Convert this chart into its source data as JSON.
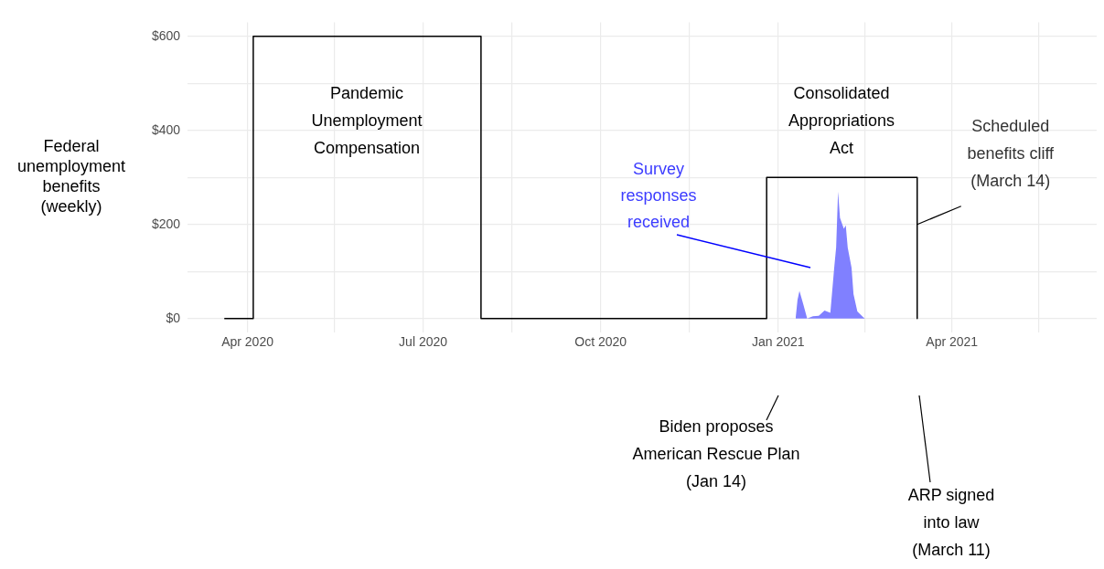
{
  "chart_data": {
    "type": "line",
    "ylabel": "Federal\nunemployment\nbenefits\n(weekly)",
    "xlim": [
      "2020-03-01",
      "2021-06-15"
    ],
    "xticks": [
      {
        "value": "2020-04-01",
        "label": "Apr 2020"
      },
      {
        "value": "2020-05-16",
        "label": null
      },
      {
        "value": "2020-07-01",
        "label": "Jul 2020"
      },
      {
        "value": "2020-08-16",
        "label": null
      },
      {
        "value": "2020-10-01",
        "label": "Oct 2020"
      },
      {
        "value": "2020-11-16",
        "label": null
      },
      {
        "value": "2021-01-01",
        "label": "Jan 2021"
      },
      {
        "value": "2021-02-15",
        "label": null
      },
      {
        "value": "2021-04-01",
        "label": "Apr 2021"
      },
      {
        "value": "2021-05-16",
        "label": null
      }
    ],
    "ylim": [
      -30,
      630
    ],
    "yticks": [
      {
        "value": 0,
        "label": "$0"
      },
      {
        "value": 100,
        "label": null
      },
      {
        "value": 200,
        "label": "$200"
      },
      {
        "value": 300,
        "label": null
      },
      {
        "value": 400,
        "label": "$400"
      },
      {
        "value": 500,
        "label": null
      },
      {
        "value": 600,
        "label": "$600"
      }
    ],
    "grid": true,
    "legend": false,
    "series": [
      {
        "type": "line",
        "color": "#000000",
        "x": [
          "2020-03-20",
          "2020-04-04",
          "2020-04-04",
          "2020-07-31",
          "2020-07-31",
          "2020-12-26",
          "2020-12-26",
          "2021-03-14",
          "2021-03-14"
        ],
        "values": [
          0,
          0,
          600,
          600,
          0,
          0,
          300,
          300,
          0
        ]
      },
      {
        "type": "area",
        "name": "Survey\nresponses\nreceived",
        "color": "#8080ff",
        "x": [
          "2021-01-10",
          "2021-01-11",
          "2021-01-12",
          "2021-01-14",
          "2021-01-16",
          "2021-01-19",
          "2021-01-22",
          "2021-01-25",
          "2021-01-28",
          "2021-01-30",
          "2021-01-31",
          "2021-02-01",
          "2021-02-02",
          "2021-02-04",
          "2021-02-05",
          "2021-02-06",
          "2021-02-08",
          "2021-02-09",
          "2021-02-11",
          "2021-02-14",
          "2021-02-15"
        ],
        "values": [
          0,
          40,
          59,
          30,
          0,
          5,
          6,
          17,
          12,
          108,
          151,
          270,
          214,
          191,
          198,
          151,
          108,
          52,
          15,
          3,
          0
        ]
      }
    ],
    "annotations": [
      "Pandemic\nUnemployment\nCompensation",
      "Consolidated\nAppropriations\nAct",
      {
        "text": "Scheduled\nbenefits cliff\n(March 14)",
        "x": "2021-03-14",
        "y": 200
      },
      "Biden proposes\nAmerican Rescue Plan\n(Jan 14)",
      "ARP signed\ninto law\n(March 11)"
    ]
  }
}
